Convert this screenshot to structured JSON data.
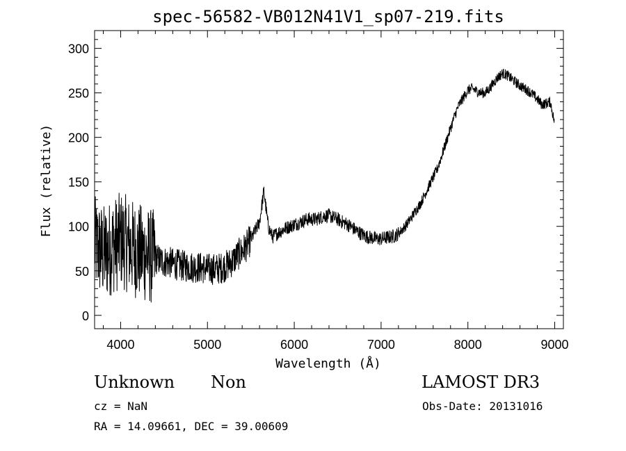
{
  "chart_data": {
    "type": "line",
    "title": "spec-56582-VB012N41V1_sp07-219.fits",
    "xlabel": "Wavelength (Å)",
    "ylabel": "Flux (relative)",
    "xlim": [
      3700,
      9100
    ],
    "ylim": [
      -15,
      320
    ],
    "xticks": [
      4000,
      5000,
      6000,
      7000,
      8000,
      9000
    ],
    "yticks": [
      0,
      50,
      100,
      150,
      200,
      250,
      300
    ],
    "grid": false,
    "series": [
      {
        "x": [
          3700,
          3750,
          3800,
          3850,
          3900,
          3950,
          4000,
          4050,
          4100,
          4150,
          4200,
          4250,
          4300,
          4350,
          4400,
          4450,
          4500,
          4550,
          4600,
          4650,
          4700,
          4750,
          4800,
          4850,
          4900,
          4950,
          5000,
          5050,
          5100,
          5150,
          5200,
          5250,
          5300,
          5350,
          5400,
          5450,
          5500,
          5550,
          5600,
          5650,
          5700,
          5750,
          5800,
          5850,
          5900,
          5950,
          6000,
          6050,
          6100,
          6150,
          6200,
          6250,
          6300,
          6350,
          6400,
          6450,
          6500,
          6550,
          6600,
          6650,
          6700,
          6750,
          6800,
          6850,
          6900,
          6950,
          7000,
          7050,
          7100,
          7150,
          7200,
          7250,
          7300,
          7350,
          7400,
          7450,
          7500,
          7550,
          7600,
          7650,
          7700,
          7750,
          7800,
          7850,
          7900,
          7950,
          8000,
          8050,
          8100,
          8150,
          8200,
          8250,
          8300,
          8350,
          8400,
          8450,
          8500,
          8550,
          8600,
          8650,
          8700,
          8750,
          8800,
          8850,
          8900,
          8950,
          9000
        ],
        "y": [
          80,
          75,
          70,
          72,
          78,
          80,
          85,
          82,
          78,
          75,
          72,
          70,
          68,
          66,
          64,
          62,
          60,
          60,
          58,
          57,
          56,
          55,
          55,
          54,
          54,
          53,
          52,
          52,
          52,
          53,
          55,
          58,
          62,
          68,
          72,
          78,
          85,
          95,
          105,
          140,
          100,
          88,
          92,
          95,
          98,
          100,
          102,
          104,
          106,
          108,
          108,
          108,
          110,
          112,
          112,
          110,
          108,
          105,
          103,
          100,
          96,
          93,
          90,
          88,
          87,
          86,
          86,
          87,
          88,
          89,
          92,
          97,
          103,
          110,
          118,
          125,
          135,
          145,
          155,
          165,
          180,
          195,
          210,
          225,
          237,
          245,
          253,
          255,
          252,
          250,
          250,
          255,
          262,
          268,
          272,
          270,
          266,
          262,
          258,
          255,
          252,
          248,
          243,
          237,
          238,
          240,
          215
        ]
      }
    ]
  },
  "meta": {
    "object_type": "Unknown",
    "subclass": "Non",
    "survey": "LAMOST DR3",
    "cz": "cz = NaN",
    "obs_date": "Obs-Date: 20131016",
    "radec": "RA =  14.09661, DEC =  39.00609"
  }
}
